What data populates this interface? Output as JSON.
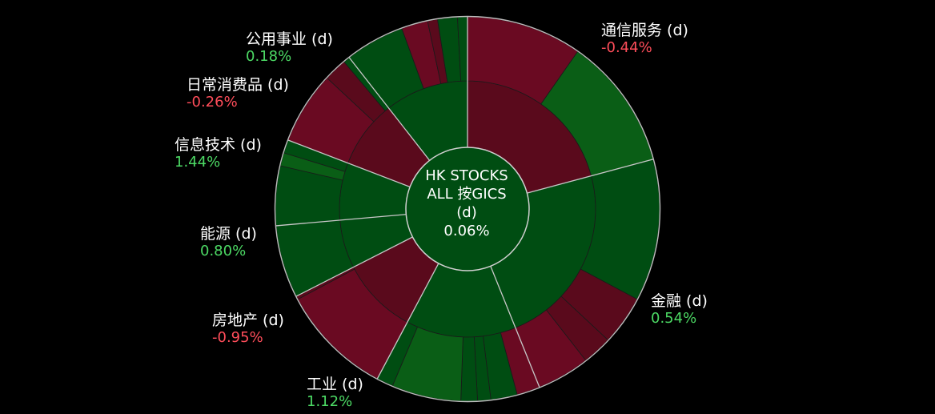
{
  "chart_data": {
    "type": "sunburst",
    "center": {
      "line1": "HK STOCKS",
      "line2": "ALL 按GICS",
      "line3": "(d)",
      "value": "0.06%"
    },
    "sectors": [
      {
        "name": "通信服务 (d)",
        "change": "-0.44%",
        "sign": "neg"
      },
      {
        "name": "金融 (d)",
        "change": "0.54%",
        "sign": "pos"
      },
      {
        "name": "工业 (d)",
        "change": "1.12%",
        "sign": "pos"
      },
      {
        "name": "房地产 (d)",
        "change": "-0.95%",
        "sign": "neg"
      },
      {
        "name": "能源 (d)",
        "change": "0.80%",
        "sign": "pos"
      },
      {
        "name": "信息技术 (d)",
        "change": "1.44%",
        "sign": "pos"
      },
      {
        "name": "日常消费品 (d)",
        "change": "-0.26%",
        "sign": "neg"
      },
      {
        "name": "公用事业 (d)",
        "change": "0.18%",
        "sign": "pos"
      }
    ],
    "colors": {
      "pos_dark": "#004d12",
      "pos_mid": "#0a5e16",
      "neg_dark": "#5a0a1c",
      "neg_mid": "#6a0a22",
      "label_pos": "#4cd964",
      "label_neg": "#ff4d5a"
    }
  }
}
